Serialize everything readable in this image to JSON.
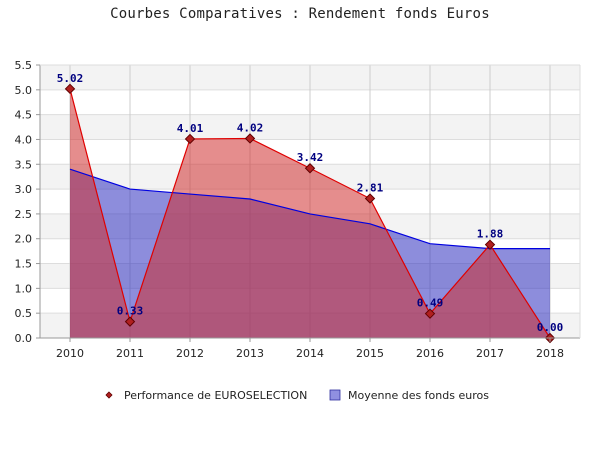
{
  "title": "Courbes Comparatives : Rendement fonds Euros",
  "chart_data": {
    "type": "area",
    "title": "Courbes Comparatives : Rendement fonds Euros",
    "categories": [
      "2010",
      "2011",
      "2012",
      "2013",
      "2014",
      "2015",
      "2016",
      "2017",
      "2018"
    ],
    "series": [
      {
        "name": "Performance de EUROSELECTION",
        "values": [
          5.02,
          0.33,
          4.01,
          4.02,
          3.42,
          2.81,
          0.49,
          1.88,
          0.0
        ],
        "labels": [
          "5.02",
          "0.33",
          "4.01",
          "4.02",
          "3.42",
          "2.81",
          "0.49",
          "1.88",
          "0.00"
        ],
        "fill": "#d03030",
        "stroke": "#e00000",
        "marker": "#b02020"
      },
      {
        "name": "Moyenne des fonds euros",
        "values": [
          3.4,
          3.0,
          2.9,
          2.8,
          2.5,
          2.3,
          1.9,
          1.8,
          1.8
        ],
        "fill": "#3030c0",
        "stroke": "#0000e0"
      }
    ],
    "y_ticks": [
      "0.0",
      "0.5",
      "1.0",
      "1.5",
      "2.0",
      "2.5",
      "3.0",
      "3.5",
      "4.0",
      "4.5",
      "5.0",
      "5.5"
    ],
    "ylim": [
      0,
      5.5
    ],
    "grid": true,
    "legend_position": "bottom"
  },
  "colors": {
    "band_light": "#f3f3f3",
    "grid": "#cccccc",
    "axis": "#999999",
    "label": "#000080"
  }
}
